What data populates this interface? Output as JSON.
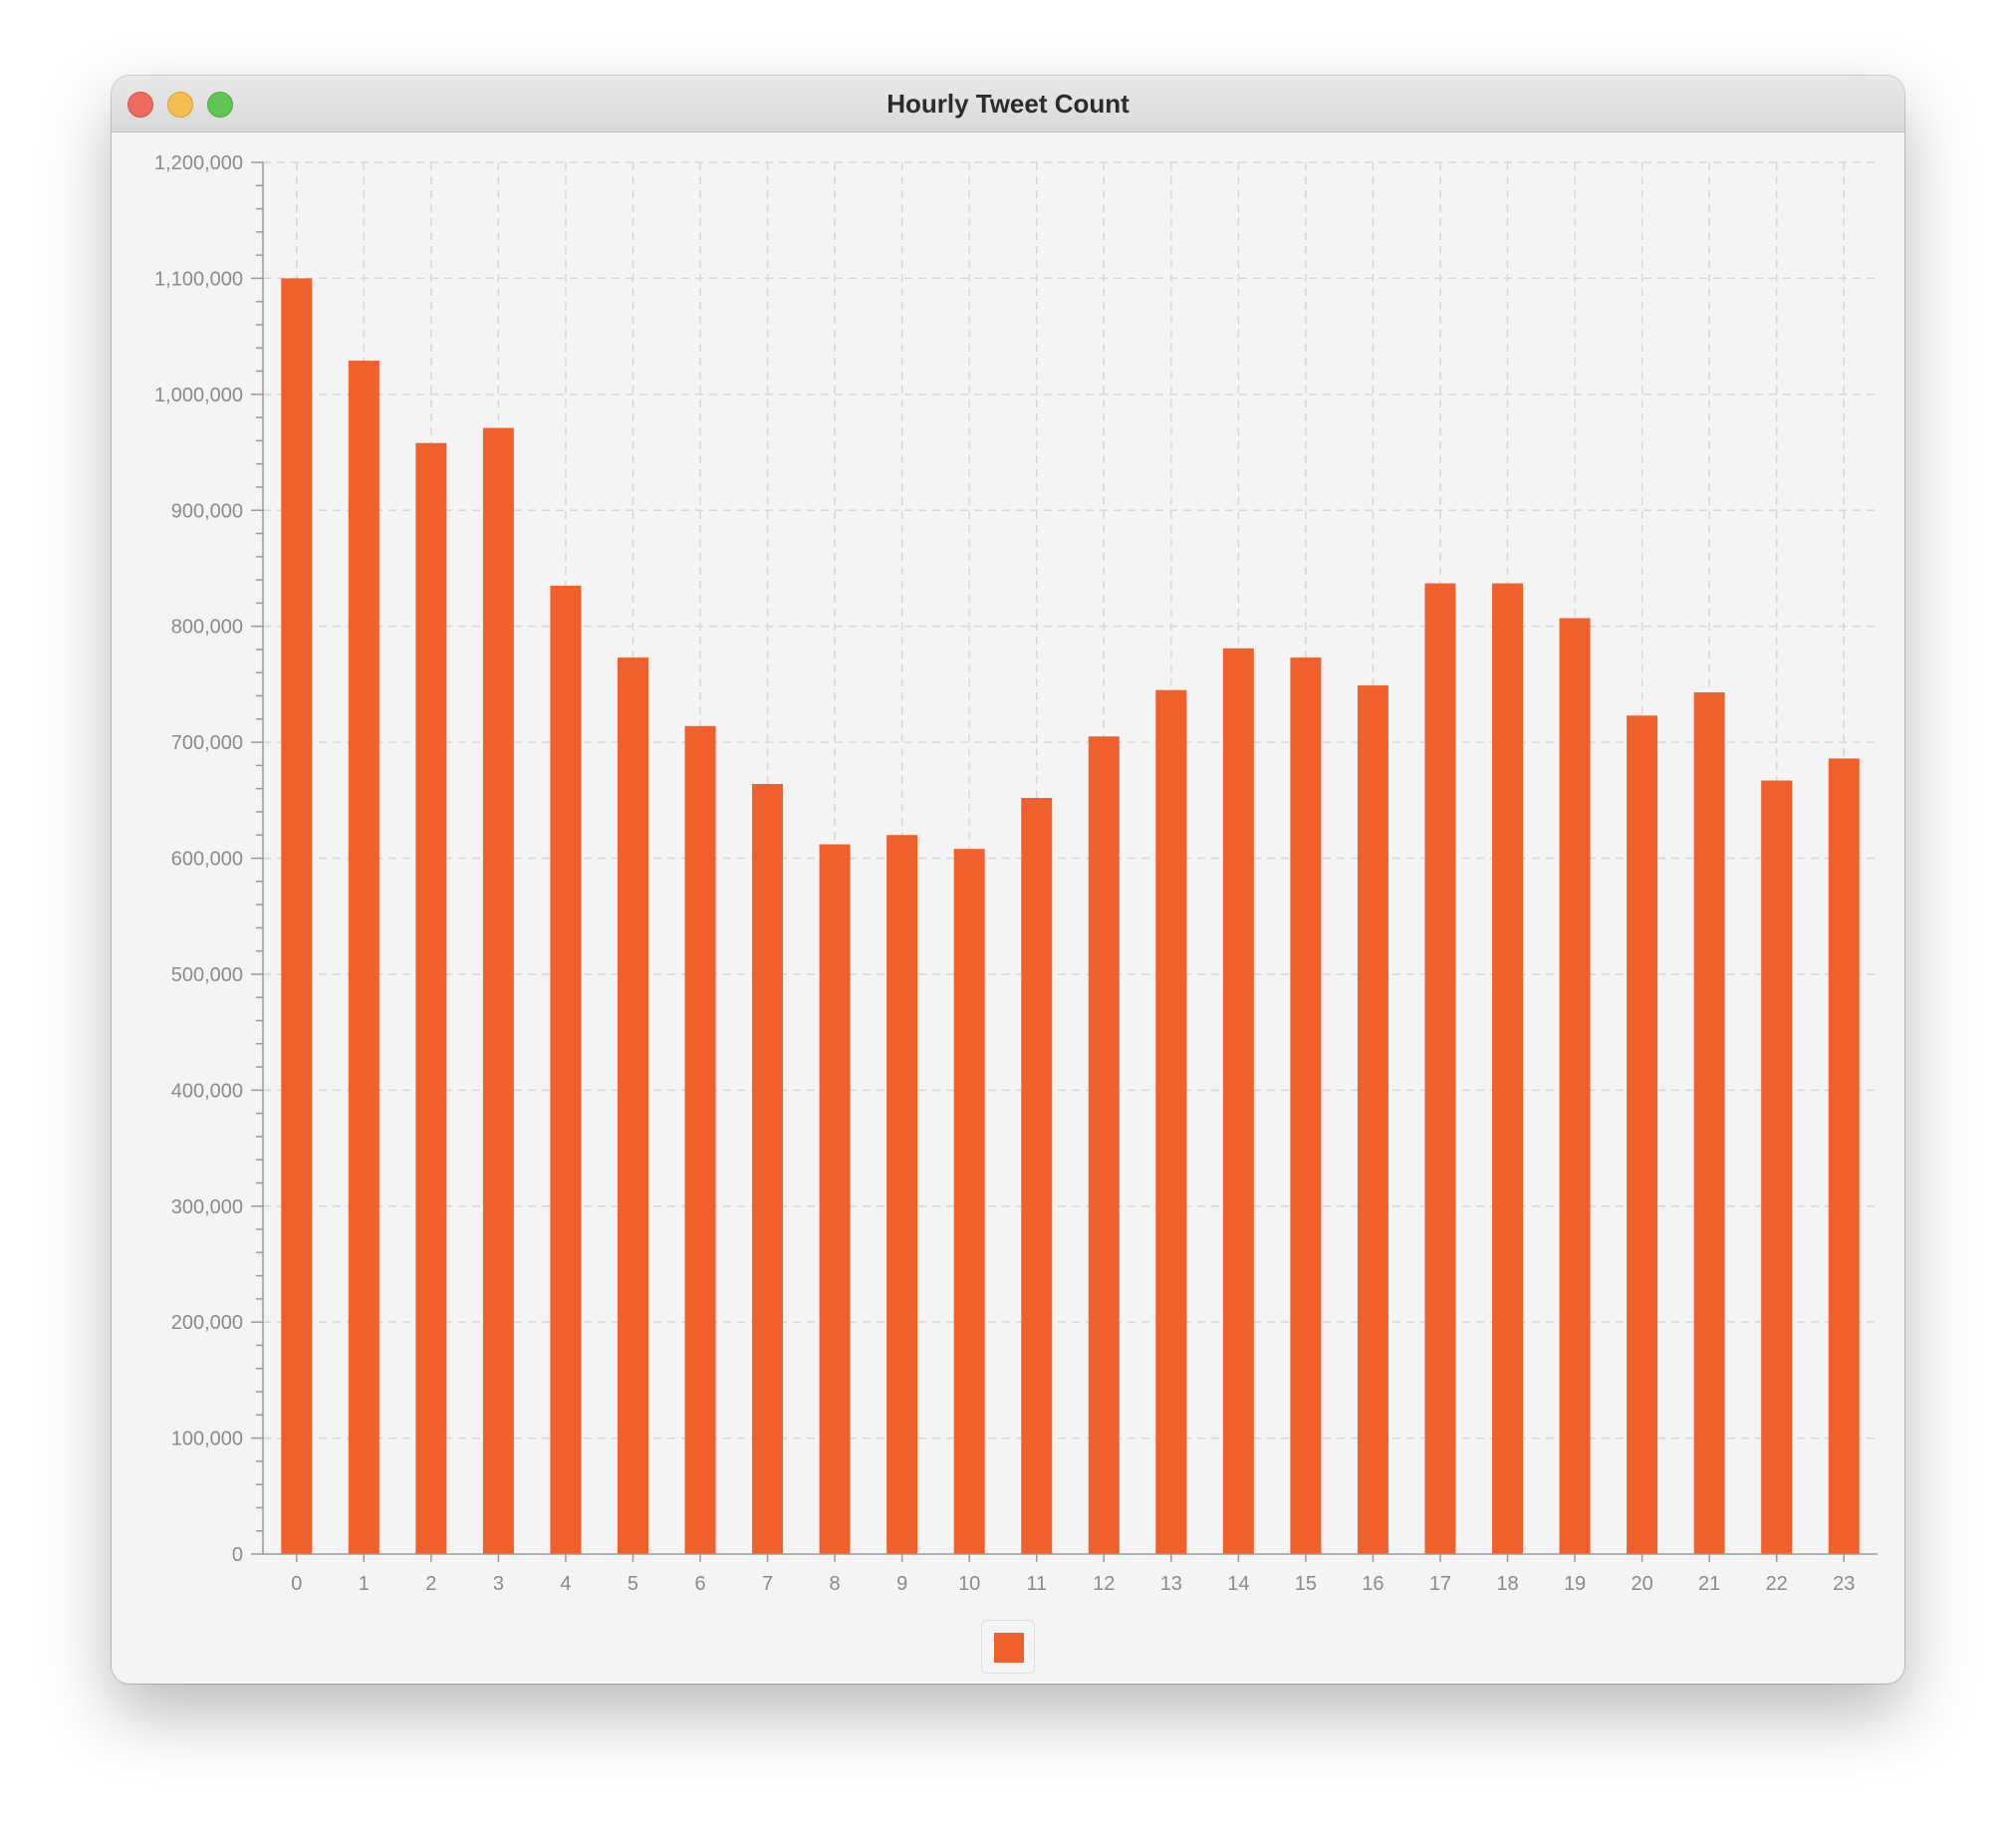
{
  "window": {
    "title": "Hourly Tweet Count"
  },
  "colors": {
    "bar": "#f0602d",
    "grid": "#d6d6d6",
    "axis": "#9a9a9a",
    "tick_label": "#8a8a8a"
  },
  "chart_data": {
    "type": "bar",
    "title": "",
    "xlabel": "",
    "ylabel": "",
    "ylim": [
      0,
      1200000
    ],
    "y_ticks": [
      0,
      100000,
      200000,
      300000,
      400000,
      500000,
      600000,
      700000,
      800000,
      900000,
      1000000,
      1100000,
      1200000
    ],
    "y_tick_labels": [
      "0",
      "100,000",
      "200,000",
      "300,000",
      "400,000",
      "500,000",
      "600,000",
      "700,000",
      "800,000",
      "900,000",
      "1,000,000",
      "1,100,000",
      "1,200,000"
    ],
    "categories": [
      "0",
      "1",
      "2",
      "3",
      "4",
      "5",
      "6",
      "7",
      "8",
      "9",
      "10",
      "11",
      "12",
      "13",
      "14",
      "15",
      "16",
      "17",
      "18",
      "19",
      "20",
      "21",
      "22",
      "23"
    ],
    "series": [
      {
        "values": [
          1100000,
          1029000,
          958000,
          971000,
          835000,
          773000,
          714000,
          664000,
          612000,
          620000,
          608000,
          652000,
          705000,
          745000,
          781000,
          773000,
          749000,
          837000,
          837000,
          807000,
          723000,
          743000,
          667000,
          686000
        ]
      }
    ],
    "grid": true,
    "legend": "bottom-center"
  }
}
